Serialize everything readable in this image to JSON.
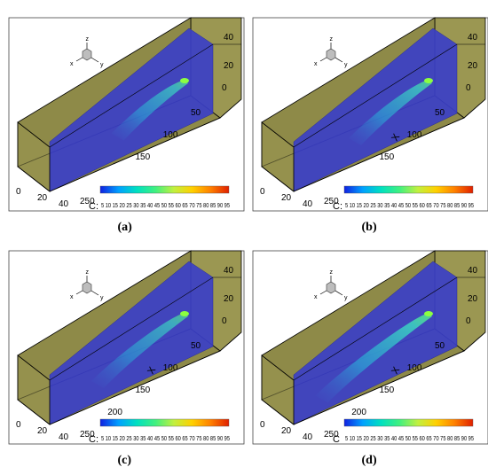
{
  "colors": {
    "box_face": "#8e8a48",
    "box_face_light": "#9b9752",
    "box_edge": "#000000",
    "plane": "#3b3fc7",
    "colormap": [
      "#1020e0",
      "#00a0ff",
      "#00e0c0",
      "#40f080",
      "#c0f040",
      "#ffd000",
      "#ff8000",
      "#e02000"
    ]
  },
  "panels": [
    {
      "caption": "(a)",
      "axis_y_ticks": [
        "0",
        "20",
        "40"
      ],
      "axis_x_ticks": [
        "50",
        "100",
        "150",
        "250"
      ],
      "axis_z_ticks": [
        "40",
        "20",
        "0"
      ],
      "x_axis_label": "",
      "legend_symbol": "C:",
      "legend_ticks": "5 10 15 20 25 30 35 40 45 50 55 60 65 70 75 80 85 90 95",
      "triad": {
        "z": "z",
        "x": "x",
        "y": "y"
      },
      "plume": {
        "length": 0.55,
        "intensity": 0.55
      }
    },
    {
      "caption": "(b)",
      "axis_y_ticks": [
        "0",
        "20",
        "40"
      ],
      "axis_x_ticks": [
        "50",
        "100",
        "150",
        "250"
      ],
      "axis_z_ticks": [
        "40",
        "20",
        "0"
      ],
      "x_axis_label": "X",
      "legend_symbol": "C:",
      "legend_ticks": "5 10 15 20 25 30 35 40 45 50 55 60 65 70 75 80 85 90 95",
      "triad": {
        "z": "z",
        "x": "x",
        "y": "y"
      },
      "plume": {
        "length": 0.6,
        "intensity": 0.6
      }
    },
    {
      "caption": "(c)",
      "axis_y_ticks": [
        "0",
        "20",
        "40"
      ],
      "axis_x_ticks": [
        "50",
        "100",
        "150",
        "200",
        "250"
      ],
      "axis_z_ticks": [
        "40",
        "20",
        "0"
      ],
      "x_axis_label": "X",
      "legend_symbol": "C:",
      "legend_ticks": "5 10 15 20 25 30 35 40 45 50 55 60 65 70 75 80 85 90 95",
      "triad": {
        "z": "z",
        "x": "x",
        "y": "y"
      },
      "plume": {
        "length": 0.7,
        "intensity": 0.5
      }
    },
    {
      "caption": "(d)",
      "axis_y_ticks": [
        "0",
        "20",
        "40"
      ],
      "axis_x_ticks": [
        "50",
        "100",
        "150",
        "200",
        "250"
      ],
      "axis_z_ticks": [
        "40",
        "20",
        "0"
      ],
      "x_axis_label": "X",
      "legend_symbol": "C",
      "legend_ticks": "5 10 15 20 25 30 35 40 45 50 55 60 65 70 75 80 85 90 95",
      "triad": {
        "z": "z",
        "x": "x",
        "y": "y"
      },
      "plume": {
        "length": 0.85,
        "intensity": 0.75
      }
    }
  ]
}
